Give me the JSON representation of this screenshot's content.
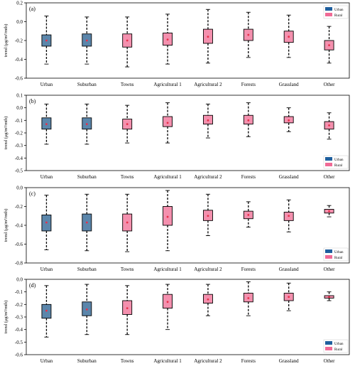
{
  "legend": {
    "urban_label": "Urban",
    "rural_label": "Rural"
  },
  "colors": {
    "urban": "#5b86ab",
    "rural": "#f490ae",
    "legend_urban": "#1f5f9e",
    "legend_rural": "#f06a96",
    "median_marker": "#e8304a"
  },
  "chart_data": [
    {
      "type": "box",
      "panel_label": "(a)",
      "ylabel": "trend (μg/m³/mth)",
      "ylim": [
        -0.6,
        0.2
      ],
      "yticks": [
        "0.2",
        "0.0",
        "-0.2",
        "-0.4",
        "-0.6"
      ],
      "yticks_values": [
        0.2,
        0.0,
        -0.2,
        -0.4,
        -0.6
      ],
      "legend_position": "top-right",
      "categories": [
        "Urban",
        "Suburban",
        "Towns",
        "Agricultural 1",
        "Agricultural 2",
        "Forests",
        "Grassland",
        "Other"
      ],
      "groups": [
        "urban",
        "urban",
        "rural",
        "rural",
        "rural",
        "rural",
        "rural",
        "rural"
      ],
      "boxes": [
        {
          "whisker_low": -0.45,
          "q1": -0.26,
          "median": -0.2,
          "q3": -0.14,
          "whisker_high": 0.06
        },
        {
          "whisker_low": -0.45,
          "q1": -0.26,
          "median": -0.2,
          "q3": -0.13,
          "whisker_high": 0.05
        },
        {
          "whisker_low": -0.48,
          "q1": -0.27,
          "median": -0.2,
          "q3": -0.13,
          "whisker_high": 0.05
        },
        {
          "whisker_low": -0.45,
          "q1": -0.25,
          "median": -0.19,
          "q3": -0.12,
          "whisker_high": 0.08
        },
        {
          "whisker_low": -0.44,
          "q1": -0.23,
          "median": -0.16,
          "q3": -0.08,
          "whisker_high": 0.13
        },
        {
          "whisker_low": -0.38,
          "q1": -0.2,
          "median": -0.14,
          "q3": -0.08,
          "whisker_high": 0.1
        },
        {
          "whisker_low": -0.38,
          "q1": -0.22,
          "median": -0.16,
          "q3": -0.1,
          "whisker_high": 0.07
        },
        {
          "whisker_low": -0.44,
          "q1": -0.3,
          "median": -0.25,
          "q3": -0.2,
          "whisker_high": -0.05
        }
      ]
    },
    {
      "type": "box",
      "panel_label": "(b)",
      "ylabel": "trend (μg/m³/mth)",
      "ylim": [
        -0.5,
        0.1
      ],
      "yticks": [
        "0.1",
        "0.0",
        "-0.1",
        "-0.2",
        "-0.3",
        "-0.4",
        "-0.5"
      ],
      "yticks_values": [
        0.1,
        0.0,
        -0.1,
        -0.2,
        -0.3,
        -0.4,
        -0.5
      ],
      "legend_position": "bottom-right",
      "categories": [
        "Urban",
        "Suburban",
        "Towns",
        "Agricultural 1",
        "Agricultural 2",
        "Forests",
        "Grassland",
        "Other"
      ],
      "groups": [
        "urban",
        "urban",
        "rural",
        "rural",
        "rural",
        "rural",
        "rural",
        "rural"
      ],
      "boxes": [
        {
          "whisker_low": -0.29,
          "q1": -0.17,
          "median": -0.13,
          "q3": -0.08,
          "whisker_high": 0.03
        },
        {
          "whisker_low": -0.29,
          "q1": -0.17,
          "median": -0.13,
          "q3": -0.08,
          "whisker_high": 0.03
        },
        {
          "whisker_low": -0.28,
          "q1": -0.17,
          "median": -0.13,
          "q3": -0.09,
          "whisker_high": 0.02
        },
        {
          "whisker_low": -0.28,
          "q1": -0.15,
          "median": -0.12,
          "q3": -0.07,
          "whisker_high": 0.04
        },
        {
          "whisker_low": -0.24,
          "q1": -0.13,
          "median": -0.1,
          "q3": -0.06,
          "whisker_high": 0.03
        },
        {
          "whisker_low": -0.23,
          "q1": -0.13,
          "median": -0.1,
          "q3": -0.06,
          "whisker_high": 0.04
        },
        {
          "whisker_low": -0.19,
          "q1": -0.12,
          "median": -0.1,
          "q3": -0.07,
          "whisker_high": 0.0
        },
        {
          "whisker_low": -0.25,
          "q1": -0.17,
          "median": -0.14,
          "q3": -0.11,
          "whisker_high": -0.04
        }
      ]
    },
    {
      "type": "box",
      "panel_label": "(c)",
      "ylabel": "trend (μg/m³/mth)",
      "ylim": [
        -0.8,
        0.0
      ],
      "yticks": [
        "0.0",
        "-0.2",
        "-0.4",
        "-0.6",
        "-0.8"
      ],
      "yticks_values": [
        0.0,
        -0.2,
        -0.4,
        -0.6,
        -0.8
      ],
      "legend_position": "bottom-right",
      "categories": [
        "Urban",
        "Suburban",
        "Towns",
        "Agricultural 1",
        "Agricultural 2",
        "Forests",
        "Grassland",
        "Other"
      ],
      "groups": [
        "urban",
        "urban",
        "rural",
        "rural",
        "rural",
        "rural",
        "rural",
        "rural"
      ],
      "boxes": [
        {
          "whisker_low": -0.66,
          "q1": -0.46,
          "median": -0.37,
          "q3": -0.29,
          "whisker_high": -0.08
        },
        {
          "whisker_low": -0.67,
          "q1": -0.46,
          "median": -0.37,
          "q3": -0.28,
          "whisker_high": -0.07
        },
        {
          "whisker_low": -0.68,
          "q1": -0.46,
          "median": -0.37,
          "q3": -0.28,
          "whisker_high": -0.07
        },
        {
          "whisker_low": -0.67,
          "q1": -0.4,
          "median": -0.31,
          "q3": -0.2,
          "whisker_high": -0.03
        },
        {
          "whisker_low": -0.51,
          "q1": -0.35,
          "median": -0.3,
          "q3": -0.24,
          "whisker_high": -0.07
        },
        {
          "whisker_low": -0.42,
          "q1": -0.33,
          "median": -0.29,
          "q3": -0.25,
          "whisker_high": -0.15
        },
        {
          "whisker_low": -0.47,
          "q1": -0.35,
          "median": -0.3,
          "q3": -0.26,
          "whisker_high": -0.13
        },
        {
          "whisker_low": -0.31,
          "q1": -0.27,
          "median": -0.25,
          "q3": -0.23,
          "whisker_high": -0.19
        }
      ]
    },
    {
      "type": "box",
      "panel_label": "(d)",
      "ylabel": "trend (μg/m³/mth)",
      "ylim": [
        -0.6,
        0.0
      ],
      "yticks": [
        "0.0",
        "-0.1",
        "-0.2",
        "-0.3",
        "-0.4",
        "-0.5",
        "-0.6"
      ],
      "yticks_values": [
        0.0,
        -0.1,
        -0.2,
        -0.3,
        -0.4,
        -0.5,
        -0.6
      ],
      "legend_position": "bottom-right",
      "categories": [
        "Urban",
        "Suburban",
        "Towns",
        "Agricultural 1",
        "Agricultural 2",
        "Forests",
        "Grassland",
        "Other"
      ],
      "groups": [
        "urban",
        "urban",
        "rural",
        "rural",
        "rural",
        "rural",
        "rural",
        "rural"
      ],
      "boxes": [
        {
          "whisker_low": -0.46,
          "q1": -0.31,
          "median": -0.25,
          "q3": -0.2,
          "whisker_high": -0.05
        },
        {
          "whisker_low": -0.44,
          "q1": -0.29,
          "median": -0.24,
          "q3": -0.18,
          "whisker_high": -0.04
        },
        {
          "whisker_low": -0.44,
          "q1": -0.28,
          "median": -0.23,
          "q3": -0.17,
          "whisker_high": -0.05
        },
        {
          "whisker_low": -0.4,
          "q1": -0.23,
          "median": -0.18,
          "q3": -0.12,
          "whisker_high": -0.04
        },
        {
          "whisker_low": -0.29,
          "q1": -0.19,
          "median": -0.16,
          "q3": -0.12,
          "whisker_high": -0.04
        },
        {
          "whisker_low": -0.29,
          "q1": -0.18,
          "median": -0.15,
          "q3": -0.11,
          "whisker_high": -0.02
        },
        {
          "whisker_low": -0.25,
          "q1": -0.17,
          "median": -0.14,
          "q3": -0.11,
          "whisker_high": -0.03
        },
        {
          "whisker_low": -0.17,
          "q1": -0.15,
          "median": -0.14,
          "q3": -0.13,
          "whisker_high": -0.1
        }
      ]
    }
  ]
}
